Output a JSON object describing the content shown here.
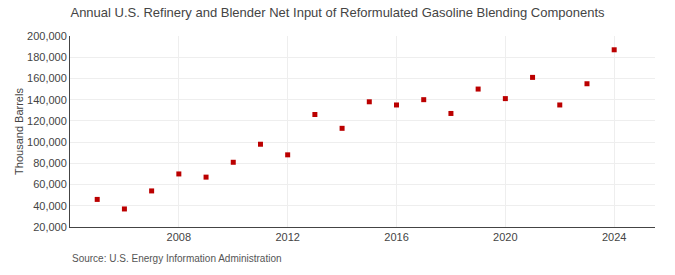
{
  "chart_data": {
    "type": "scatter",
    "title": "Annual U.S. Refinery and Blender Net Input of Reformulated Gasoline Blending Components",
    "y_label": "Thousand Barrels",
    "annotations": [
      "Source: U.S. Energy Information Administration"
    ],
    "x": [
      2005,
      2006,
      2007,
      2008,
      2009,
      2010,
      2011,
      2012,
      2013,
      2014,
      2015,
      2016,
      2017,
      2018,
      2019,
      2020,
      2021,
      2022,
      2023,
      2024
    ],
    "values": [
      46000,
      37000,
      54000,
      70000,
      67000,
      81000,
      98000,
      88000,
      126000,
      113000,
      138000,
      135000,
      140000,
      127000,
      150000,
      141000,
      161000,
      135000,
      155000,
      187000
    ],
    "color": "#bb0000",
    "marker": "square",
    "xlim": [
      2004.0,
      2025.5
    ],
    "xticks": [
      2008,
      2012,
      2016,
      2020,
      2024
    ],
    "ylim": [
      20000,
      200000
    ],
    "yticks": [
      {
        "value": 20000,
        "label": "20,000"
      },
      {
        "value": 40000,
        "label": "40,000"
      },
      {
        "value": 60000,
        "label": "60,000"
      },
      {
        "value": 80000,
        "label": "80,000"
      },
      {
        "value": 100000,
        "label": "100,000"
      },
      {
        "value": 120000,
        "label": "120,000"
      },
      {
        "value": 140000,
        "label": "140,000"
      },
      {
        "value": 160000,
        "label": "160,000"
      },
      {
        "value": 180000,
        "label": "180,000"
      },
      {
        "value": 200000,
        "label": "200,000"
      }
    ],
    "grid": true
  }
}
